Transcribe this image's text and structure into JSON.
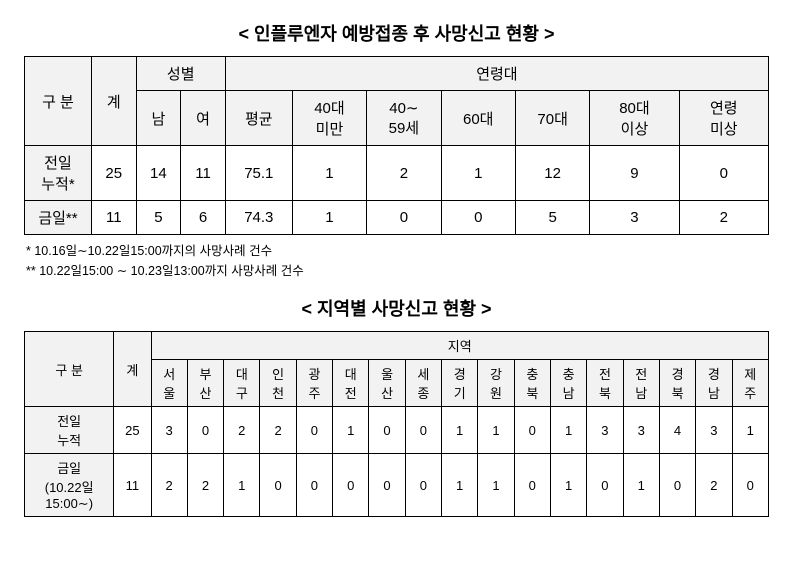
{
  "table1": {
    "title": "< 인플루엔자 예방접종 후 사망신고 현황 >",
    "headers": {
      "category": "구 분",
      "total": "계",
      "gender_group": "성별",
      "gender_male": "남",
      "gender_female": "여",
      "age_group": "연령대",
      "age_avg": "평균",
      "age_u40": "40대\n미만",
      "age_40_59": "40∼\n59세",
      "age_60s": "60대",
      "age_70s": "70대",
      "age_80p": "80대\n이상",
      "age_unknown": "연령\n미상"
    },
    "rows": [
      {
        "label": "전일\n누적*",
        "total": "25",
        "male": "14",
        "female": "11",
        "avg": "75.1",
        "u40": "1",
        "a40_59": "2",
        "a60s": "1",
        "a70s": "12",
        "a80p": "9",
        "unknown": "0"
      },
      {
        "label": "금일**",
        "total": "11",
        "male": "5",
        "female": "6",
        "avg": "74.3",
        "u40": "1",
        "a40_59": "0",
        "a60s": "0",
        "a70s": "5",
        "a80p": "3",
        "unknown": "2"
      }
    ],
    "footnotes": [
      "* 10.16일∼10.22일15:00까지의 사망사례 건수",
      "** 10.22일15:00 ∼ 10.23일13:00까지 사망사례 건수"
    ]
  },
  "table2": {
    "title": "< 지역별 사망신고 현황 >",
    "headers": {
      "category": "구 분",
      "total": "계",
      "region_group": "지역",
      "regions": [
        "서울",
        "부산",
        "대구",
        "인천",
        "광주",
        "대전",
        "울산",
        "세종",
        "경기",
        "강원",
        "충북",
        "충남",
        "전북",
        "전남",
        "경북",
        "경남",
        "제주"
      ]
    },
    "rows": [
      {
        "label": "전일\n누적",
        "total": "25",
        "vals": [
          "3",
          "0",
          "2",
          "2",
          "0",
          "1",
          "0",
          "0",
          "1",
          "1",
          "0",
          "1",
          "3",
          "3",
          "4",
          "3",
          "1"
        ]
      },
      {
        "label": "금일\n(10.22일\n15:00∼)",
        "total": "11",
        "vals": [
          "2",
          "2",
          "1",
          "0",
          "0",
          "0",
          "0",
          "0",
          "1",
          "1",
          "0",
          "1",
          "0",
          "1",
          "0",
          "2",
          "0"
        ]
      }
    ]
  }
}
